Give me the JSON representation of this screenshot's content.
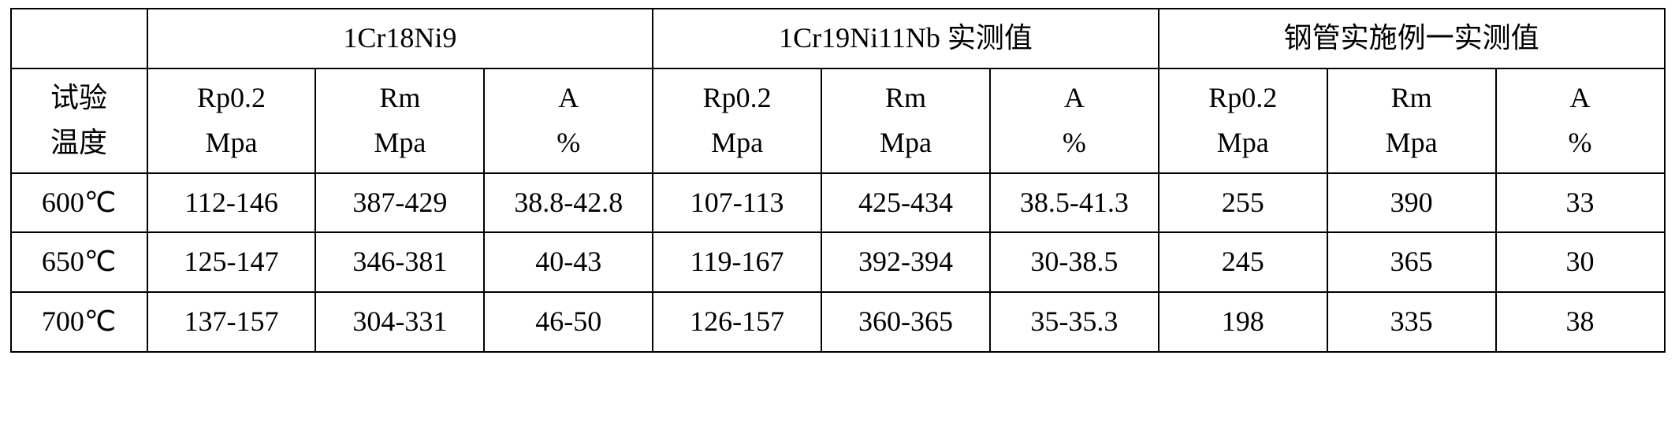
{
  "table": {
    "groups": [
      {
        "label": "",
        "span": 1
      },
      {
        "label": "1Cr18Ni9",
        "span": 3
      },
      {
        "label": "1Cr19Ni11Nb 实测值",
        "span": 3
      },
      {
        "label": "钢管实施例一实测值",
        "span": 3
      }
    ],
    "subheaders": [
      "试验\n温度",
      "Rp0.2\nMpa",
      "Rm\nMpa",
      "A\n%",
      "Rp0.2\nMpa",
      "Rm\nMpa",
      "A\n%",
      "Rp0.2\nMpa",
      "Rm\nMpa",
      "A\n%"
    ],
    "rows": [
      [
        "600℃",
        "112-146",
        "387-429",
        "38.8-42.8",
        "107-113",
        "425-434",
        "38.5-41.3",
        "255",
        "390",
        "33"
      ],
      [
        "650℃",
        "125-147",
        "346-381",
        "40-43",
        "119-167",
        "392-394",
        "30-38.5",
        "245",
        "365",
        "30"
      ],
      [
        "700℃",
        "137-157",
        "304-331",
        "46-50",
        "126-157",
        "360-365",
        "35-35.3",
        "198",
        "335",
        "38"
      ]
    ],
    "styling": {
      "border_color": "#000000",
      "background_color": "#ffffff",
      "text_color": "#000000",
      "font_size": 36,
      "border_width": 2
    }
  }
}
